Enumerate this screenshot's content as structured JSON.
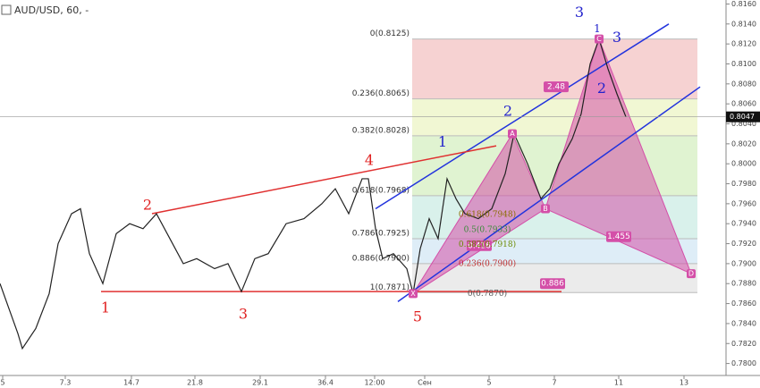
{
  "chart_data": {
    "type": "line",
    "title": "AUD/USD, 60, -",
    "xlim": [
      0,
      81.2
    ],
    "ylim": [
      0.7788,
      0.8164
    ],
    "xticks": [
      {
        "value": 0.3,
        "label": "5"
      },
      7.3,
      14.7,
      21.8,
      29.1,
      36.4,
      {
        "value": 41.9,
        "label": "12:00"
      },
      {
        "value": 47.5,
        "label": "Сен"
      },
      {
        "value": 54.7,
        "label": "5"
      },
      {
        "value": 62,
        "label": "7"
      },
      {
        "value": 69.2,
        "label": "11"
      },
      {
        "value": 76.5,
        "label": "13"
      }
    ],
    "xtick_labels_override": null,
    "yticks": [
      {
        "value": 0.78,
        "label": "0.7800"
      },
      {
        "value": 0.782,
        "label": "0.7820"
      },
      {
        "value": 0.784,
        "label": "0.7840"
      },
      {
        "value": 0.786,
        "label": "0.7860"
      },
      {
        "value": 0.788,
        "label": "0.7880"
      },
      {
        "value": 0.79,
        "label": "0.7900"
      },
      {
        "value": 0.792,
        "label": "0.7920"
      },
      {
        "value": 0.794,
        "label": "0.7940"
      },
      {
        "value": 0.796,
        "label": "0.7960"
      },
      {
        "value": 0.798,
        "label": "0.7980"
      },
      {
        "value": 0.8,
        "label": "0.8000"
      },
      {
        "value": 0.802,
        "label": "0.8020"
      },
      {
        "value": 0.804,
        "label": "0.8040"
      },
      {
        "value": 0.806,
        "label": "0.8060"
      },
      {
        "value": 0.808,
        "label": "0.8080"
      },
      {
        "value": 0.81,
        "label": "0.8100"
      },
      {
        "value": 0.812,
        "label": "0.8120"
      },
      {
        "value": 0.814,
        "label": "0.8140"
      },
      {
        "value": 0.816,
        "label": "0.8160"
      }
    ],
    "current_price": 0.8047,
    "series": [
      {
        "name": "AUD/USD",
        "color": "#222222",
        "x": [
          0,
          1,
          2,
          2.5,
          4,
          5.5,
          6.5,
          8,
          9,
          10,
          11.5,
          13,
          14.5,
          16,
          17.5,
          19,
          20.5,
          22,
          24,
          25.5,
          27,
          28.5,
          30,
          32,
          34,
          36,
          37.5,
          39,
          40.5,
          41.2,
          42,
          42.8,
          44,
          45.5,
          46.2,
          47,
          48,
          49,
          50,
          51,
          52,
          53.5,
          55,
          56.5,
          57.5,
          59,
          60.5,
          61.5,
          62.5,
          64,
          65,
          66,
          67,
          68,
          69,
          70
        ],
        "values": [
          0.788,
          0.7855,
          0.783,
          0.7815,
          0.7835,
          0.787,
          0.792,
          0.795,
          0.7955,
          0.791,
          0.788,
          0.793,
          0.794,
          0.7935,
          0.795,
          0.7925,
          0.79,
          0.7905,
          0.7895,
          0.79,
          0.7872,
          0.7905,
          0.791,
          0.794,
          0.7945,
          0.796,
          0.7975,
          0.795,
          0.7985,
          0.7985,
          0.7935,
          0.7905,
          0.791,
          0.7895,
          0.787,
          0.7915,
          0.7945,
          0.7925,
          0.7985,
          0.7965,
          0.795,
          0.7945,
          0.7955,
          0.799,
          0.803,
          0.8,
          0.7965,
          0.7975,
          0.8,
          0.8025,
          0.805,
          0.81,
          0.8125,
          0.8095,
          0.807,
          0.8047
        ]
      }
    ],
    "fib_levels": [
      {
        "label": "0(0.8125)",
        "value": 0.8125,
        "color": "#f4c7c7"
      },
      {
        "label": "0.236(0.8065)",
        "value": 0.8065,
        "color": "#eef5c8"
      },
      {
        "label": "0.382(0.8028)",
        "value": 0.8028,
        "color": "#d8f0c6"
      },
      {
        "label": "0.618(0.7968)",
        "value": 0.7968,
        "color": "#cfeee6"
      },
      {
        "label": "0.786(0.7925)",
        "value": 0.7925,
        "color": "#d6e8f5"
      },
      {
        "label": "0.886(0.7900)",
        "value": 0.79,
        "color": "#e6e6e6"
      },
      {
        "label": "1(0.7871)",
        "value": 0.7871,
        "color": "#ffffff"
      }
    ],
    "fib_x": [
      46.1,
      78.0
    ],
    "trend_lines": [
      {
        "color": "#2233dd",
        "points": [
          42,
          0.7955,
          74.8,
          0.814
        ]
      },
      {
        "color": "#2233dd",
        "points": [
          44.5,
          0.7862,
          78.3,
          0.8077
        ]
      },
      {
        "color": "#e03030",
        "points": [
          17,
          0.795,
          55.5,
          0.8018
        ]
      },
      {
        "color": "#e03030",
        "points": [
          11.3,
          0.7872,
          62.8,
          0.7872
        ]
      }
    ],
    "pattern": {
      "color": "#d44fa8",
      "labels": [
        "X",
        "A",
        "B",
        "C",
        "D"
      ],
      "x": [
        46.2,
        57.3,
        61,
        67,
        77.3
      ],
      "values": [
        0.787,
        0.803,
        0.7955,
        0.8125,
        0.789
      ]
    },
    "annotations": [
      {
        "text": "1",
        "x": 11.8,
        "y": 0.7855,
        "color": "#e02020",
        "size": 16
      },
      {
        "text": "2",
        "x": 16.5,
        "y": 0.7958,
        "color": "#e02020",
        "size": 16
      },
      {
        "text": "3",
        "x": 27.2,
        "y": 0.7849,
        "color": "#e02020",
        "size": 16
      },
      {
        "text": "4",
        "x": 41.3,
        "y": 0.8003,
        "color": "#e02020",
        "size": 16
      },
      {
        "text": "5",
        "x": 46.7,
        "y": 0.7846,
        "color": "#e02020",
        "size": 16
      },
      {
        "text": "1",
        "x": 49.5,
        "y": 0.8021,
        "color": "#2222cc",
        "size": 16
      },
      {
        "text": "2",
        "x": 56.8,
        "y": 0.8052,
        "color": "#2222cc",
        "size": 16
      },
      {
        "text": "3",
        "x": 64.8,
        "y": 0.8151,
        "color": "#2222cc",
        "size": 16
      },
      {
        "text": "1",
        "x": 66.8,
        "y": 0.8135,
        "color": "#2222cc",
        "size": 12
      },
      {
        "text": "3",
        "x": 69,
        "y": 0.8126,
        "color": "#2222cc",
        "size": 16
      },
      {
        "text": "2",
        "x": 67.3,
        "y": 0.8075,
        "color": "#2222cc",
        "size": 16
      },
      {
        "text": "0.618(0.7948)",
        "x": 54.5,
        "y": 0.7949,
        "color": "#8a6d00",
        "size": 9
      },
      {
        "text": "0.5(0.7933)",
        "x": 54.5,
        "y": 0.7934,
        "color": "#3a8a3a",
        "size": 9
      },
      {
        "text": "0.382(0.7918)",
        "x": 54.5,
        "y": 0.7919,
        "color": "#6a8a00",
        "size": 9
      },
      {
        "text": "0.236(0.7900)",
        "x": 54.5,
        "y": 0.79,
        "color": "#c03030",
        "size": 9
      },
      {
        "text": "0(0.7870)",
        "x": 54.5,
        "y": 0.787,
        "color": "#555555",
        "size": 9
      }
    ],
    "ratios": [
      {
        "text": "2.48",
        "x": 62.2,
        "y": 0.8077
      },
      {
        "text": "0.416",
        "x": 53.6,
        "y": 0.7918
      },
      {
        "text": "1.455",
        "x": 69.2,
        "y": 0.7927
      },
      {
        "text": "0.886",
        "x": 61.8,
        "y": 0.788
      }
    ]
  }
}
